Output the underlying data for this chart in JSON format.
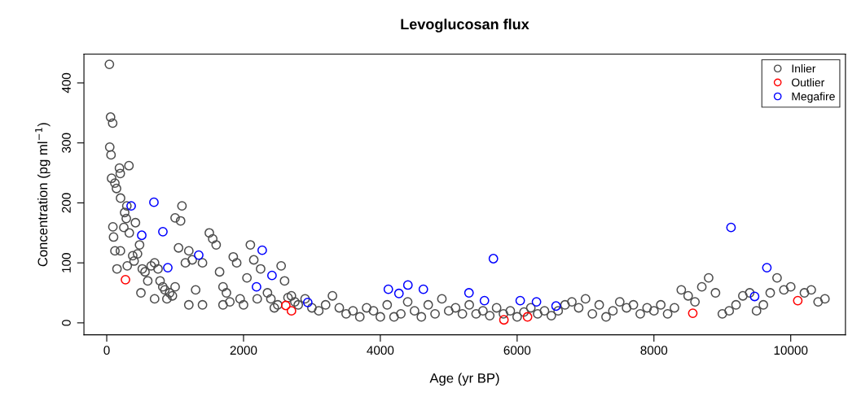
{
  "chart_data": {
    "type": "scatter",
    "title": "Levoglucosan flux",
    "xlabel": "Age (yr BP)",
    "ylabel": "Concentration (pg ml$^{−1}$)",
    "xlim": [
      -333,
      10800
    ],
    "ylim": [
      -20,
      448
    ],
    "xticks": [
      0,
      2000,
      4000,
      6000,
      8000,
      10000
    ],
    "yticks": [
      0,
      100,
      200,
      300,
      400
    ],
    "grid": false,
    "legend": "top right",
    "marker": "circle",
    "series": [
      {
        "name": "Inlier",
        "color": "#4d4d4d",
        "x": [
          39,
          56,
          87,
          44,
          63,
          186,
          198,
          325,
          71,
          119,
          143,
          202,
          262,
          286,
          294,
          420,
          250,
          90,
          100,
          330,
          480,
          200,
          120,
          150,
          300,
          380,
          400,
          450,
          520,
          560,
          600,
          650,
          700,
          750,
          780,
          820,
          850,
          880,
          920,
          960,
          1000,
          1050,
          1100,
          1080,
          1000,
          1150,
          1200,
          1250,
          1400,
          1500,
          1550,
          1600,
          1650,
          1700,
          1750,
          1800,
          1850,
          1900,
          1950,
          2000,
          2100,
          2150,
          2050,
          2250,
          2350,
          2400,
          2500,
          2550,
          2600,
          2700,
          2750,
          2800,
          2900,
          3000,
          3100,
          3200,
          3300,
          3400,
          3500,
          3600,
          3700,
          3800,
          3900,
          4000,
          4100,
          4200,
          4300,
          4400,
          4500,
          4600,
          4700,
          4800,
          4900,
          5000,
          5100,
          5200,
          5300,
          5400,
          5500,
          5600,
          5700,
          5800,
          5900,
          6000,
          6100,
          6200,
          6300,
          6400,
          6500,
          6600,
          6700,
          6800,
          6900,
          7000,
          7100,
          7200,
          7300,
          7400,
          7500,
          7600,
          7700,
          7800,
          7900,
          8000,
          8100,
          8200,
          8300,
          8400,
          8500,
          8600,
          8700,
          8800,
          8900,
          9000,
          9100,
          9200,
          9300,
          9400,
          9500,
          9600,
          9700,
          9800,
          9900,
          10000,
          10200,
          10300,
          10400,
          10500,
          500,
          700,
          1200,
          1300,
          1400,
          1700,
          2200,
          2450,
          2650
        ],
        "values": [
          431,
          343,
          333,
          293,
          280,
          258,
          249,
          262,
          241,
          233,
          224,
          208,
          184,
          174,
          195,
          167,
          159,
          160,
          143,
          150,
          130,
          120,
          120,
          90,
          95,
          112,
          103,
          115,
          90,
          85,
          70,
          95,
          100,
          90,
          70,
          60,
          55,
          40,
          50,
          45,
          60,
          125,
          195,
          170,
          175,
          100,
          120,
          105,
          100,
          150,
          140,
          130,
          85,
          60,
          50,
          35,
          110,
          100,
          40,
          30,
          130,
          105,
          75,
          90,
          50,
          40,
          30,
          95,
          70,
          45,
          35,
          30,
          40,
          25,
          20,
          30,
          45,
          25,
          15,
          20,
          10,
          25,
          20,
          10,
          30,
          10,
          15,
          35,
          20,
          10,
          30,
          15,
          40,
          20,
          25,
          15,
          30,
          15,
          20,
          12,
          25,
          15,
          20,
          10,
          18,
          25,
          15,
          20,
          12,
          20,
          30,
          35,
          25,
          40,
          15,
          30,
          10,
          20,
          35,
          25,
          30,
          15,
          25,
          20,
          30,
          15,
          25,
          55,
          45,
          35,
          60,
          75,
          50,
          15,
          20,
          30,
          45,
          50,
          20,
          30,
          50,
          75,
          55,
          60,
          50,
          55,
          35,
          40,
          50,
          40,
          30,
          55,
          30,
          30,
          40,
          25,
          42
        ]
      },
      {
        "name": "Outlier",
        "color": "#ff0000",
        "x": [
          274,
          2618,
          2701,
          5807,
          6152,
          8568,
          10103
        ],
        "values": [
          72,
          29,
          20,
          5,
          10,
          16,
          37
        ]
      },
      {
        "name": "Megafire",
        "color": "#0000ff",
        "x": [
          357,
          690,
          512,
          821,
          893,
          1345,
          2273,
          2416,
          2190,
          2939,
          4117,
          4272,
          4403,
          4629,
          5296,
          5522,
          5653,
          6045,
          6283,
          6569,
          9127,
          9472,
          9651
        ],
        "values": [
          195,
          201,
          146,
          152,
          92,
          113,
          121,
          79,
          60,
          34,
          56,
          49,
          63,
          56,
          50,
          37,
          107,
          37,
          35,
          28,
          159,
          44,
          92
        ]
      }
    ]
  }
}
